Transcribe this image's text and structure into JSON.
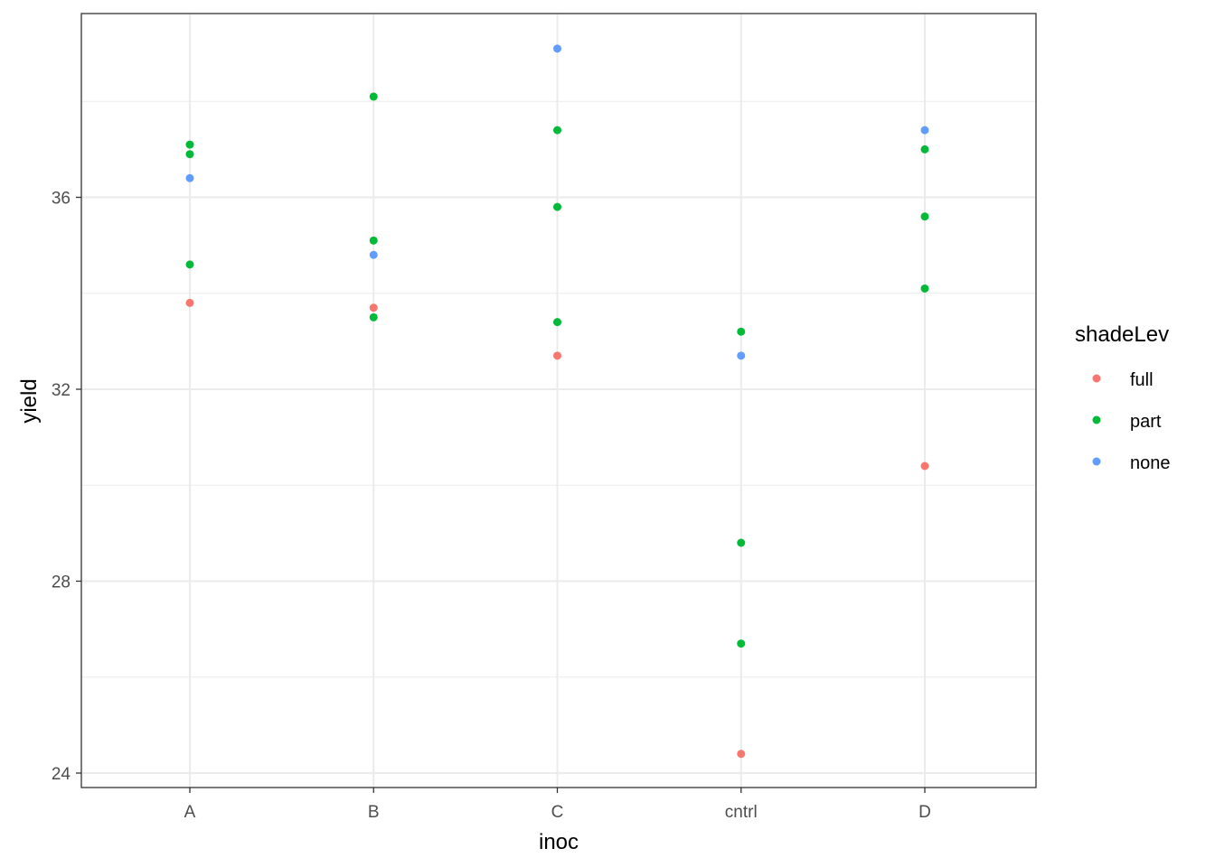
{
  "chart_data": {
    "type": "scatter",
    "xlabel": "inoc",
    "ylabel": "yield",
    "categories": [
      "A",
      "B",
      "C",
      "cntrl",
      "D"
    ],
    "ylim": [
      23.7,
      39.8
    ],
    "yticks": [
      24,
      28,
      32,
      36
    ],
    "grid": true,
    "legend": {
      "title": "shadeLev",
      "position": "right",
      "entries": [
        "full",
        "part",
        "none"
      ]
    },
    "series": [
      {
        "name": "full",
        "color": "#F8766D",
        "points": [
          {
            "x": "A",
            "y": 33.8
          },
          {
            "x": "B",
            "y": 33.7
          },
          {
            "x": "C",
            "y": 32.7
          },
          {
            "x": "cntrl",
            "y": 24.4
          },
          {
            "x": "D",
            "y": 30.4
          }
        ]
      },
      {
        "name": "part",
        "color": "#00BA38",
        "points": [
          {
            "x": "A",
            "y": 37.1
          },
          {
            "x": "A",
            "y": 36.9
          },
          {
            "x": "A",
            "y": 34.6
          },
          {
            "x": "B",
            "y": 38.1
          },
          {
            "x": "B",
            "y": 35.1
          },
          {
            "x": "B",
            "y": 33.5
          },
          {
            "x": "C",
            "y": 37.4
          },
          {
            "x": "C",
            "y": 35.8
          },
          {
            "x": "C",
            "y": 33.4
          },
          {
            "x": "cntrl",
            "y": 33.2
          },
          {
            "x": "cntrl",
            "y": 28.8
          },
          {
            "x": "cntrl",
            "y": 26.7
          },
          {
            "x": "D",
            "y": 37.0
          },
          {
            "x": "D",
            "y": 35.6
          },
          {
            "x": "D",
            "y": 34.1
          }
        ]
      },
      {
        "name": "none",
        "color": "#619CFF",
        "points": [
          {
            "x": "A",
            "y": 36.4
          },
          {
            "x": "B",
            "y": 34.8
          },
          {
            "x": "C",
            "y": 39.1
          },
          {
            "x": "cntrl",
            "y": 32.7
          },
          {
            "x": "D",
            "y": 37.4
          }
        ]
      }
    ]
  }
}
